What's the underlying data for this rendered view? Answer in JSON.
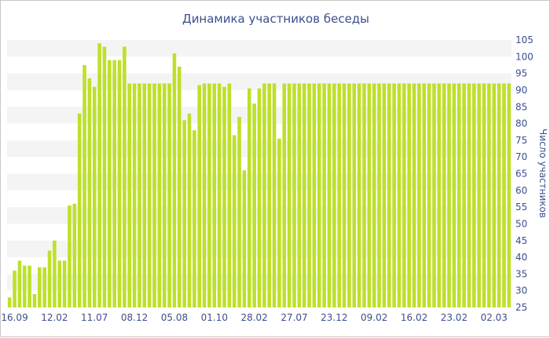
{
  "chart_data": {
    "type": "bar",
    "title": "Динамика участников беседы",
    "xlabel": "",
    "ylabel": "Число участников",
    "ylim": [
      25,
      105
    ],
    "y_ticks": [
      25,
      30,
      35,
      40,
      45,
      50,
      55,
      60,
      65,
      70,
      75,
      80,
      85,
      90,
      95,
      100,
      105
    ],
    "y_axis_side": "right",
    "grid": "alternating horizontal bands",
    "x_tick_labels": [
      "16.09",
      "12.02",
      "11.07",
      "08.12",
      "05.08",
      "01.10",
      "28.02",
      "27.07",
      "23.12",
      "09.02",
      "16.02",
      "23.02",
      "02.03"
    ],
    "x_tick_indices": [
      1,
      9,
      17,
      25,
      33,
      41,
      49,
      57,
      65,
      73,
      81,
      89,
      97
    ],
    "bar_color": "#bde02a",
    "values": [
      28,
      36,
      39,
      37.5,
      37.5,
      29,
      37,
      37,
      42,
      45,
      39,
      39,
      55.5,
      56,
      83,
      97.5,
      93.5,
      91,
      104,
      103,
      99,
      99,
      99,
      103,
      92,
      92,
      92,
      92,
      92,
      92,
      92,
      92,
      92,
      101,
      97,
      81,
      83,
      78,
      91.5,
      92,
      92,
      92,
      92,
      91,
      92,
      76.5,
      82,
      66,
      90.5,
      86,
      90.5,
      92,
      92,
      92,
      75.5,
      92,
      92,
      92,
      92,
      92,
      92,
      92,
      92,
      92,
      92,
      92,
      92,
      92,
      92,
      92,
      92,
      92,
      92,
      92,
      92,
      92,
      92,
      92,
      92,
      92,
      92,
      92,
      92,
      92,
      92,
      92,
      92,
      92,
      92,
      92,
      92,
      92,
      92,
      92,
      92,
      92,
      92,
      92,
      92,
      92,
      92
    ]
  }
}
